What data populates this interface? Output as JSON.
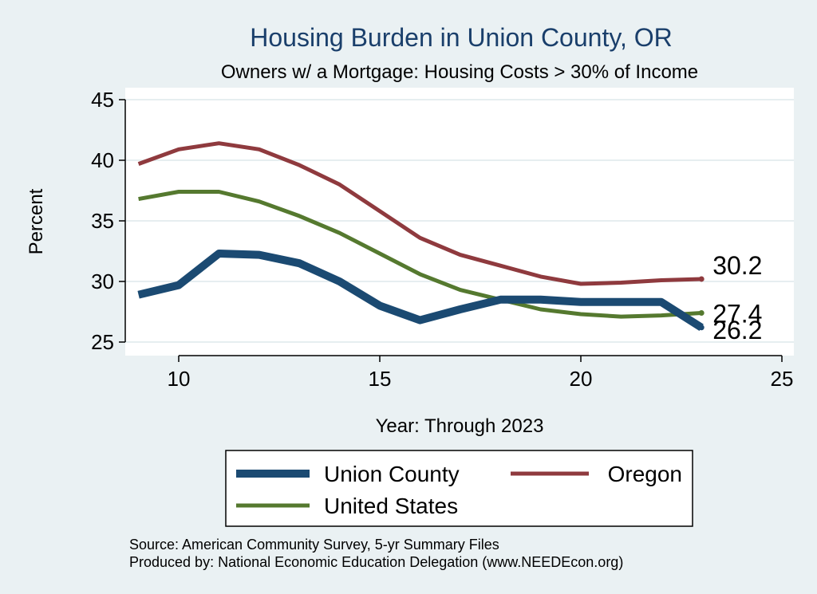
{
  "chart_data": {
    "type": "line",
    "title": "Housing Burden in Union County, OR",
    "subtitle": "Owners w/ a Mortgage: Housing Costs > 30% of Income",
    "xlabel": "Year: Through 2023",
    "ylabel": "Percent",
    "xlim": [
      9,
      25
    ],
    "ylim": [
      24.5,
      46
    ],
    "xticks": [
      10,
      15,
      20,
      25
    ],
    "yticks": [
      25,
      30,
      35,
      40,
      45
    ],
    "grid": true,
    "legend_position": "bottom",
    "series": [
      {
        "name": "Union County",
        "color": "#1b4a72",
        "weight": "thick",
        "x": [
          9,
          10,
          11,
          12,
          13,
          14,
          15,
          16,
          17,
          18,
          19,
          20,
          21,
          22,
          23
        ],
        "values": [
          28.9,
          29.7,
          32.3,
          32.2,
          31.5,
          30.0,
          28.0,
          26.8,
          27.7,
          28.5,
          28.5,
          28.3,
          28.3,
          28.3,
          26.2
        ],
        "end_label": "26.2"
      },
      {
        "name": "Oregon",
        "color": "#8f3a3e",
        "weight": "normal",
        "x": [
          9,
          10,
          11,
          12,
          13,
          14,
          15,
          16,
          17,
          18,
          19,
          20,
          21,
          22,
          23
        ],
        "values": [
          39.7,
          40.9,
          41.4,
          40.9,
          39.6,
          38.0,
          35.8,
          33.6,
          32.2,
          31.3,
          30.4,
          29.8,
          29.9,
          30.1,
          30.2
        ],
        "end_label": "30.2"
      },
      {
        "name": "United States",
        "color": "#55792f",
        "weight": "normal",
        "x": [
          9,
          10,
          11,
          12,
          13,
          14,
          15,
          16,
          17,
          18,
          19,
          20,
          21,
          22,
          23
        ],
        "values": [
          36.8,
          37.4,
          37.4,
          36.6,
          35.4,
          34.0,
          32.3,
          30.6,
          29.3,
          28.5,
          27.7,
          27.3,
          27.1,
          27.2,
          27.4
        ],
        "end_label": "27.4"
      }
    ],
    "legend": [
      "Union County",
      "Oregon",
      "United States"
    ],
    "footnotes": [
      "Source: American Community Survey, 5-yr Summary Files",
      "Produced by: National Economic Education Delegation (www.NEEDEcon.org)"
    ]
  },
  "colors": {
    "background": "#eaf1f3",
    "plot_background": "#ffffff",
    "grid": "#e6eef0",
    "title": "#1a3f6b"
  }
}
